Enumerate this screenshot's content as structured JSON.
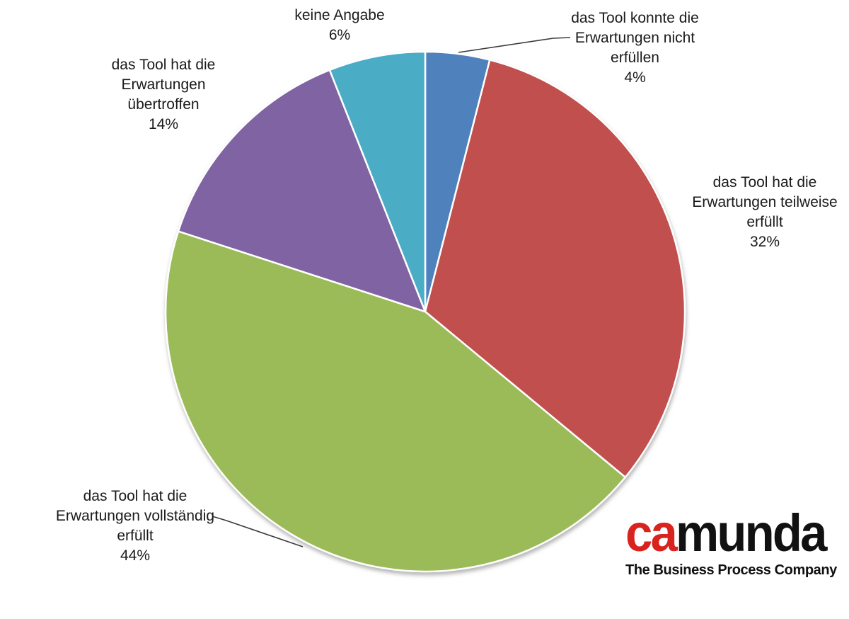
{
  "chart_data": {
    "type": "pie",
    "title": "",
    "unit": "%",
    "start_angle_deg": 0,
    "direction": "clockwise",
    "background": "#ffffff",
    "slices": [
      {
        "name": "das Tool konnte die Erwartungen nicht erfüllen",
        "value": 4,
        "pct_label": "4%",
        "color": "#4F81BD",
        "label_lines": [
          "das Tool konnte die",
          "Erwartungen nicht",
          "erfüllen"
        ]
      },
      {
        "name": "das Tool hat die Erwartungen teilweise erfüllt",
        "value": 32,
        "pct_label": "32%",
        "color": "#C0504D",
        "label_lines": [
          "das Tool hat die",
          "Erwartungen teilweise",
          "erfüllt"
        ]
      },
      {
        "name": "das Tool hat die Erwartungen vollständig erfüllt",
        "value": 44,
        "pct_label": "44%",
        "color": "#9BBB59",
        "label_lines": [
          "das Tool hat die",
          "Erwartungen vollständig",
          "erfüllt"
        ]
      },
      {
        "name": "das Tool hat die Erwartungen übertroffen",
        "value": 14,
        "pct_label": "14%",
        "color": "#8064A2",
        "label_lines": [
          "das Tool hat die",
          "Erwartungen",
          "übertroffen"
        ]
      },
      {
        "name": "keine Angabe",
        "value": 6,
        "pct_label": "6%",
        "color": "#4BACC6",
        "label_lines": [
          "keine Angabe"
        ]
      }
    ]
  },
  "logo": {
    "brand_red_part": "ca",
    "brand_black_part": "munda",
    "tagline": "The Business Process Company",
    "accent_color": "#D9231F"
  }
}
